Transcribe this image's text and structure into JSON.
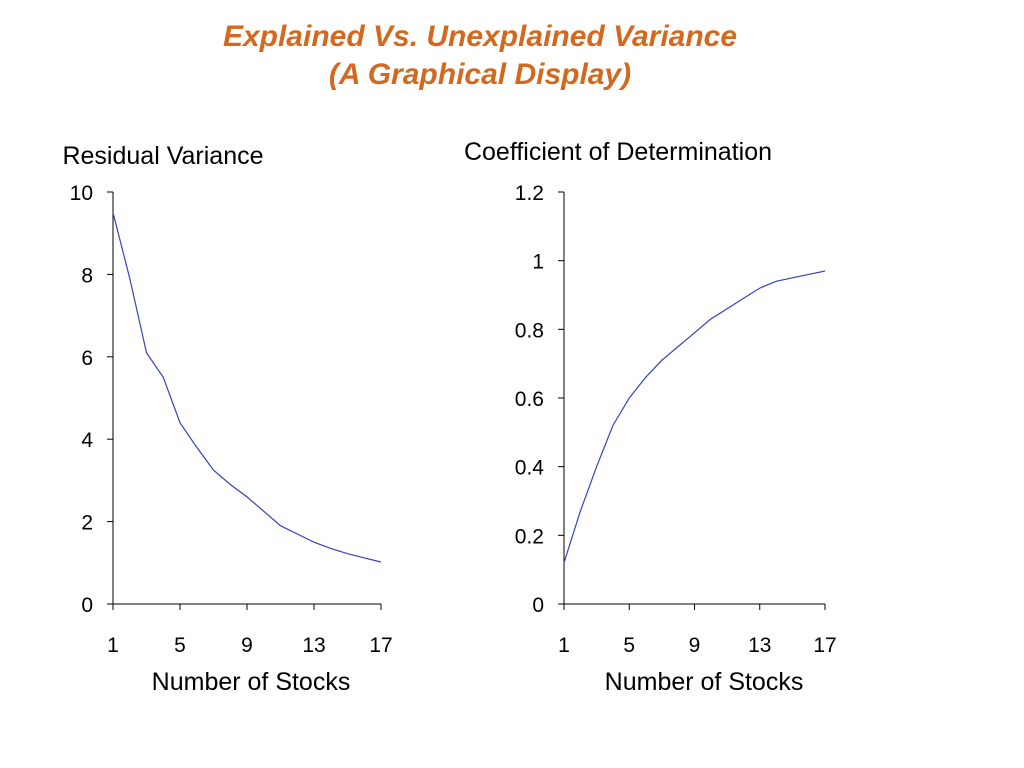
{
  "slide": {
    "title_line1": "Explained Vs. Unexplained Variance",
    "title_line2": "(A Graphical Display)",
    "title_color": "#d2691e"
  },
  "chart_data": [
    {
      "type": "line",
      "title": "Residual Variance",
      "xlabel": "Number of Stocks",
      "ylabel": "",
      "x": [
        1,
        2,
        3,
        4,
        5,
        6,
        7,
        8,
        9,
        10,
        11,
        12,
        13,
        14,
        15,
        16,
        17
      ],
      "series": [
        {
          "name": "",
          "values": [
            9.5,
            7.9,
            6.1,
            5.5,
            4.4,
            3.8,
            3.25,
            2.9,
            2.6,
            2.25,
            1.9,
            1.7,
            1.5,
            1.35,
            1.22,
            1.12,
            1.02
          ]
        }
      ],
      "xticks": [
        1,
        5,
        9,
        13,
        17
      ],
      "yticks": [
        0,
        2,
        4,
        6,
        8,
        10
      ],
      "ylim": [
        0,
        10
      ],
      "xlim": [
        1,
        17
      ],
      "line_color": "#3344bb",
      "grid": false,
      "legend": "none"
    },
    {
      "type": "line",
      "title": "Coefficient of Determination",
      "xlabel": "Number of Stocks",
      "ylabel": "",
      "x": [
        1,
        2,
        3,
        4,
        5,
        6,
        7,
        8,
        9,
        10,
        11,
        12,
        13,
        14,
        15,
        16,
        17
      ],
      "series": [
        {
          "name": "",
          "values": [
            0.12,
            0.27,
            0.4,
            0.52,
            0.6,
            0.66,
            0.71,
            0.75,
            0.79,
            0.83,
            0.86,
            0.89,
            0.92,
            0.94,
            0.95,
            0.96,
            0.97
          ]
        }
      ],
      "xticks": [
        1,
        5,
        9,
        13,
        17
      ],
      "yticks": [
        0,
        0.2,
        0.4,
        0.6,
        0.8,
        1,
        1.2
      ],
      "ylim": [
        0,
        1.2
      ],
      "xlim": [
        1,
        17
      ],
      "line_color": "#3344bb",
      "grid": false,
      "legend": "none"
    }
  ]
}
